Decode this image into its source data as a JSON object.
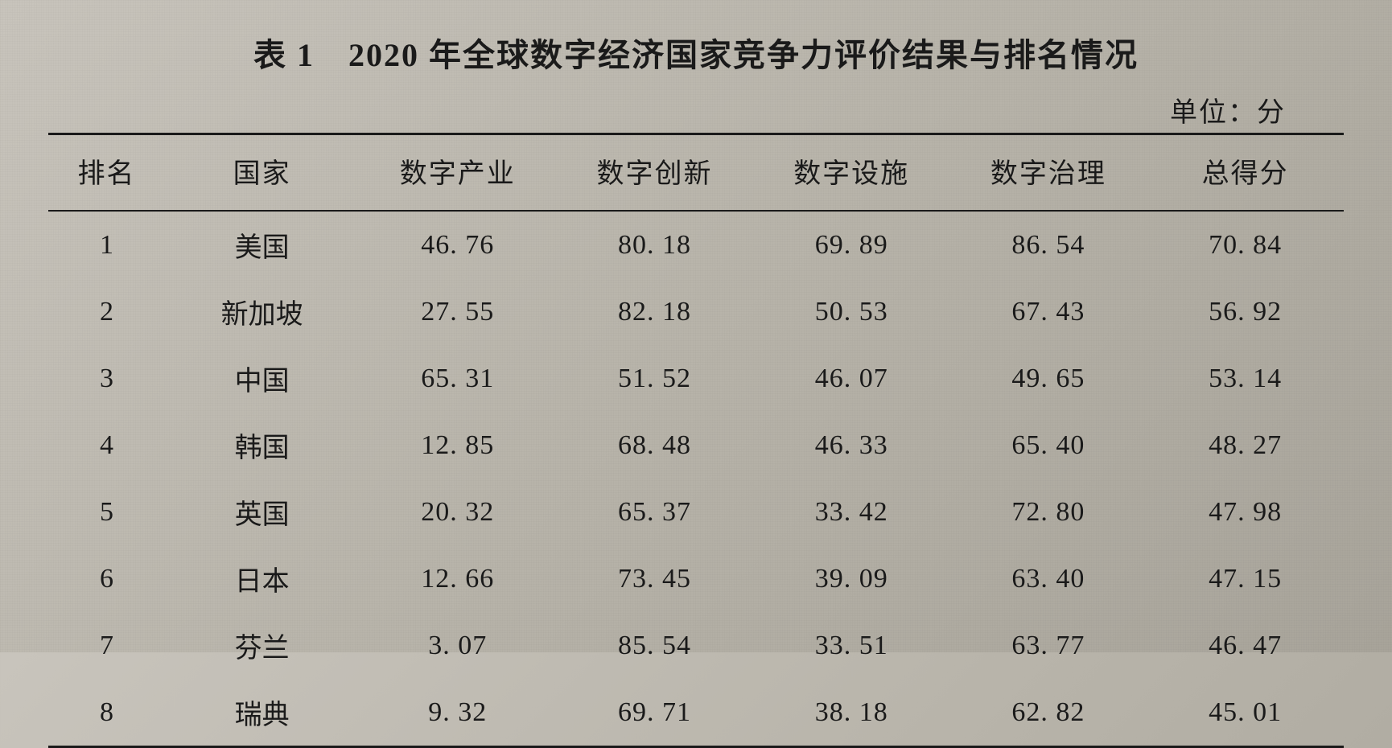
{
  "title": "表 1　2020 年全球数字经济国家竞争力评价结果与排名情况",
  "unit_label": "单位：分",
  "table": {
    "background_color": "#c8c4bc",
    "text_color": "#1a1a1a",
    "rule_color": "#1a1a1a",
    "title_fontsize_pt": 30,
    "header_fontsize_pt": 26,
    "body_fontsize_pt": 26,
    "columns": [
      {
        "key": "rank",
        "label": "排名",
        "align": "center",
        "width_pct": 9
      },
      {
        "key": "country",
        "label": "国家",
        "align": "center",
        "width_pct": 15
      },
      {
        "key": "industry",
        "label": "数字产业",
        "align": "center",
        "width_pct": 15.2
      },
      {
        "key": "innovation",
        "label": "数字创新",
        "align": "center",
        "width_pct": 15.2
      },
      {
        "key": "infra",
        "label": "数字设施",
        "align": "center",
        "width_pct": 15.2
      },
      {
        "key": "governance",
        "label": "数字治理",
        "align": "center",
        "width_pct": 15.2
      },
      {
        "key": "total",
        "label": "总得分",
        "align": "center",
        "width_pct": 15.2
      }
    ],
    "rows": [
      {
        "rank": "1",
        "country": "美国",
        "industry": "46. 76",
        "innovation": "80. 18",
        "infra": "69. 89",
        "governance": "86. 54",
        "total": "70. 84"
      },
      {
        "rank": "2",
        "country": "新加坡",
        "industry": "27. 55",
        "innovation": "82. 18",
        "infra": "50. 53",
        "governance": "67. 43",
        "total": "56. 92"
      },
      {
        "rank": "3",
        "country": "中国",
        "industry": "65. 31",
        "innovation": "51. 52",
        "infra": "46. 07",
        "governance": "49. 65",
        "total": "53. 14"
      },
      {
        "rank": "4",
        "country": "韩国",
        "industry": "12. 85",
        "innovation": "68. 48",
        "infra": "46. 33",
        "governance": "65. 40",
        "total": "48. 27"
      },
      {
        "rank": "5",
        "country": "英国",
        "industry": "20. 32",
        "innovation": "65. 37",
        "infra": "33. 42",
        "governance": "72. 80",
        "total": "47. 98"
      },
      {
        "rank": "6",
        "country": "日本",
        "industry": "12. 66",
        "innovation": "73. 45",
        "infra": "39. 09",
        "governance": "63. 40",
        "total": "47. 15"
      },
      {
        "rank": "7",
        "country": "芬兰",
        "industry": "3. 07",
        "innovation": "85. 54",
        "infra": "33. 51",
        "governance": "63. 77",
        "total": "46. 47"
      },
      {
        "rank": "8",
        "country": "瑞典",
        "industry": "9. 32",
        "innovation": "69. 71",
        "infra": "38. 18",
        "governance": "62. 82",
        "total": "45. 01"
      }
    ]
  }
}
